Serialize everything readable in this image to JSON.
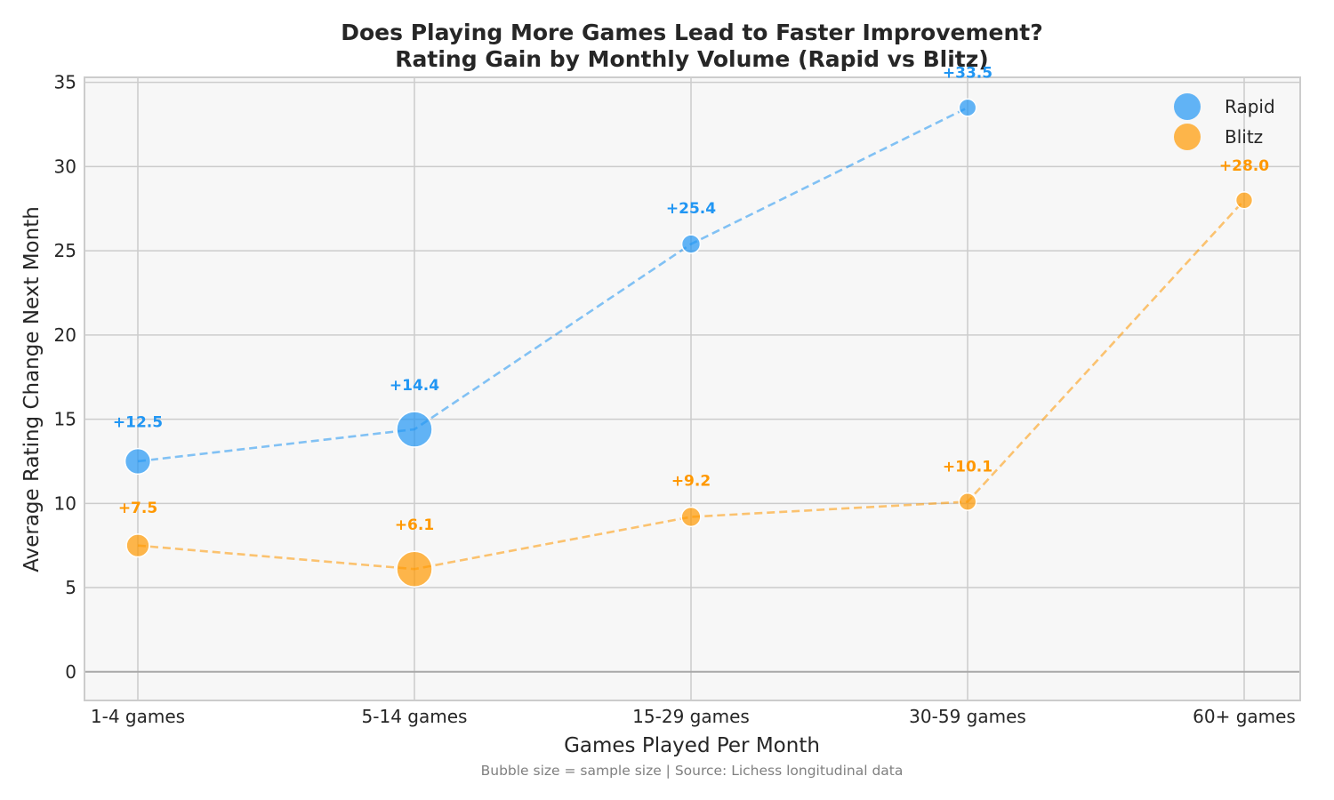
{
  "chart_data": {
    "type": "scatter",
    "title": "Does Playing More Games Lead to Faster Improvement?",
    "subtitle": "Rating Gain by Monthly Volume (Rapid vs Blitz)",
    "xlabel": "Games Played Per Month",
    "ylabel": "Average Rating Change Next Month",
    "caption": "Bubble size = sample size | Source: Lichess longitudinal data",
    "categories": [
      "1-4 games",
      "5-14 games",
      "15-29 games",
      "30-59 games",
      "60+ games"
    ],
    "ylim": [
      -1.7,
      35.3
    ],
    "yticks": [
      0,
      5,
      10,
      15,
      20,
      25,
      30,
      35
    ],
    "grid": true,
    "legend_position": "top-right",
    "series": [
      {
        "name": "Rapid",
        "color": "#2196F3",
        "x": [
          "1-4 games",
          "5-14 games",
          "15-29 games",
          "30-59 games"
        ],
        "values": [
          12.5,
          14.4,
          25.4,
          33.5
        ],
        "labels": [
          "+12.5",
          "+14.4",
          "+25.4",
          "+33.5"
        ],
        "relative_sample_size": [
          0.36,
          1.0,
          0.1,
          0.07
        ]
      },
      {
        "name": "Blitz",
        "color": "#FF9800",
        "x": [
          "1-4 games",
          "5-14 games",
          "15-29 games",
          "30-59 games",
          "60+ games"
        ],
        "values": [
          7.5,
          6.1,
          9.2,
          10.1,
          28.0
        ],
        "labels": [
          "+7.5",
          "+6.1",
          "+9.2",
          "+10.1",
          "+28.0"
        ],
        "relative_sample_size": [
          0.24,
          1.0,
          0.12,
          0.07,
          0.06
        ]
      }
    ]
  }
}
